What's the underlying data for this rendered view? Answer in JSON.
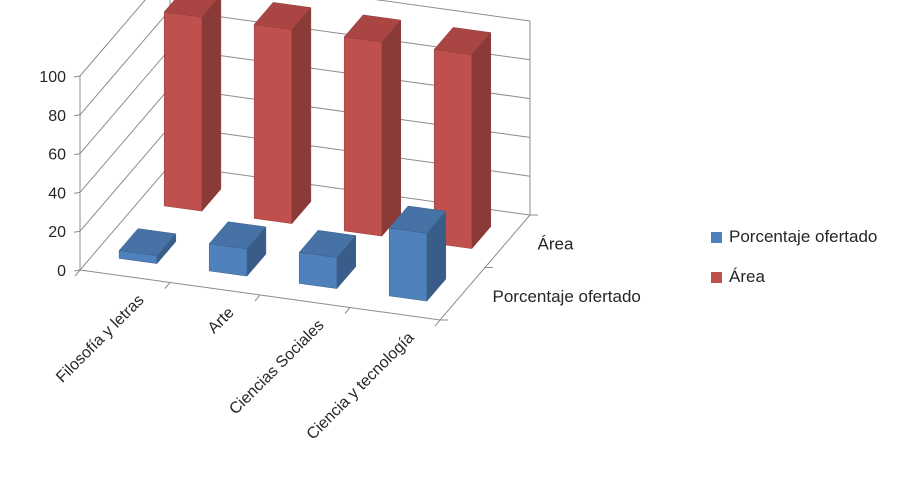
{
  "chart_data": {
    "type": "bar",
    "variant": "3d-column",
    "title": "",
    "xlabel": "",
    "ylabel": "",
    "ylim": [
      0,
      100
    ],
    "yticks": [
      "0",
      "20",
      "40",
      "60",
      "80",
      "100"
    ],
    "categories": [
      "Filosofía y letras",
      "Arte",
      "Ciencias Sociales",
      "Ciencia y tecnología"
    ],
    "depth_labels": [
      "Área",
      "Porcentaje ofertado"
    ],
    "series": [
      {
        "name": "Porcentaje ofertado",
        "color": "#4F81BD",
        "values": [
          4,
          14,
          16,
          35
        ]
      },
      {
        "name": "Área",
        "color": "#C0504D",
        "values": [
          100,
          100,
          100,
          100
        ]
      }
    ],
    "legend_position": "right",
    "grid": true
  },
  "legend": {
    "items": [
      {
        "label": "Porcentaje ofertado",
        "color": "#4F81BD"
      },
      {
        "label": "Área",
        "color": "#C0504D"
      }
    ]
  }
}
